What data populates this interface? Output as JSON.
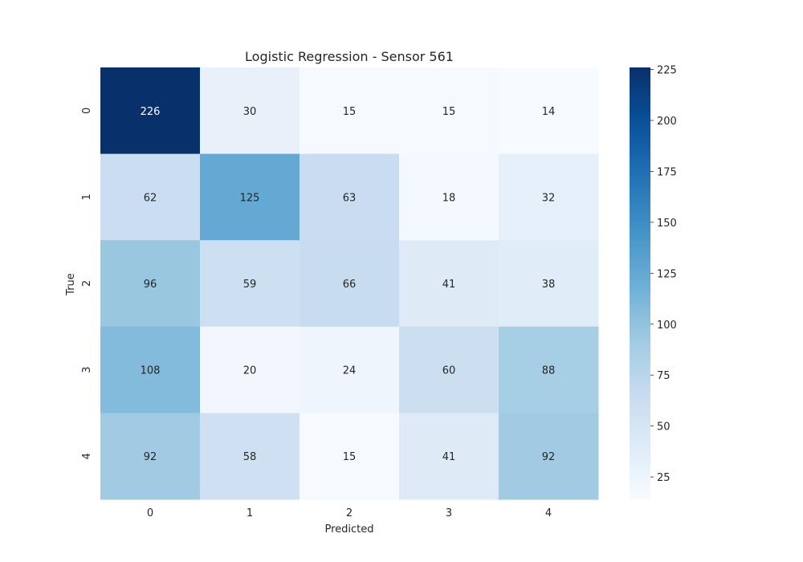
{
  "chart_data": {
    "type": "heatmap",
    "title": "Logistic Regression - Sensor 561",
    "xlabel": "Predicted",
    "ylabel": "True",
    "x_categories": [
      "0",
      "1",
      "2",
      "3",
      "4"
    ],
    "y_categories": [
      "0",
      "1",
      "2",
      "3",
      "4"
    ],
    "values": [
      [
        226,
        30,
        15,
        15,
        14
      ],
      [
        62,
        125,
        63,
        18,
        32
      ],
      [
        96,
        59,
        66,
        41,
        38
      ],
      [
        108,
        20,
        24,
        60,
        88
      ],
      [
        92,
        58,
        15,
        41,
        92
      ]
    ],
    "colormap": "Blues",
    "color_range": [
      14,
      226
    ],
    "colorbar_ticks": [
      25,
      50,
      75,
      100,
      125,
      150,
      175,
      200,
      225
    ],
    "grid": false,
    "colorbar_placement": "right"
  }
}
